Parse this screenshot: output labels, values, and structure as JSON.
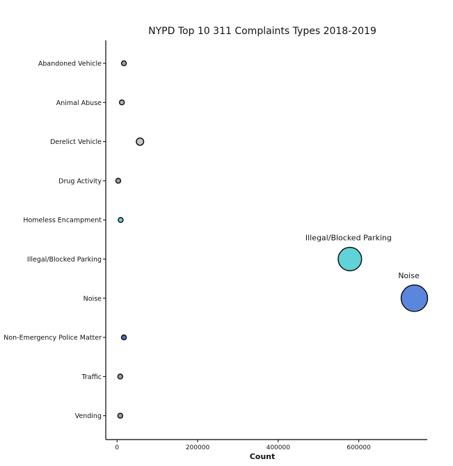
{
  "chart_data": {
    "type": "scatter",
    "title": "NYPD Top 10 311 Complaints Types 2018-2019",
    "xlabel": "Count",
    "ylabel": "",
    "xlim": [
      -28000,
      770000
    ],
    "xticks": [
      0,
      200000,
      400000,
      600000
    ],
    "xtick_labels": [
      "0",
      "200000",
      "400000",
      "600000"
    ],
    "categories": [
      "Vending",
      "Traffic",
      "Non-Emergency Police Matter",
      "Noise",
      "Illegal/Blocked Parking",
      "Homeless Encampment",
      "Drug Activity",
      "Derelict Vehicle",
      "Animal Abuse",
      "Abandoned Vehicle"
    ],
    "points": [
      {
        "category": "Vending",
        "x": 8000,
        "color": "#a0a0a0"
      },
      {
        "category": "Traffic",
        "x": 8000,
        "color": "#a0a0a0"
      },
      {
        "category": "Non-Emergency Police Matter",
        "x": 17000,
        "color": "#4a72c9"
      },
      {
        "category": "Noise",
        "x": 738000,
        "color": "#5b86dd"
      },
      {
        "category": "Illegal/Blocked Parking",
        "x": 578000,
        "color": "#5fd3d8"
      },
      {
        "category": "Homeless Encampment",
        "x": 9000,
        "color": "#5fd3d8"
      },
      {
        "category": "Drug Activity",
        "x": 3000,
        "color": "#a0a0a0"
      },
      {
        "category": "Derelict Vehicle",
        "x": 57000,
        "color": "#c8c8c8"
      },
      {
        "category": "Animal Abuse",
        "x": 12000,
        "color": "#b4b4b4"
      },
      {
        "category": "Abandoned Vehicle",
        "x": 17000,
        "color": "#a0a0a0"
      }
    ],
    "annotations": [
      {
        "text": "Noise",
        "category": "Noise"
      },
      {
        "text": "Illegal/Blocked Parking",
        "category": "Illegal/Blocked Parking"
      }
    ],
    "grid": false,
    "legend": "none"
  }
}
